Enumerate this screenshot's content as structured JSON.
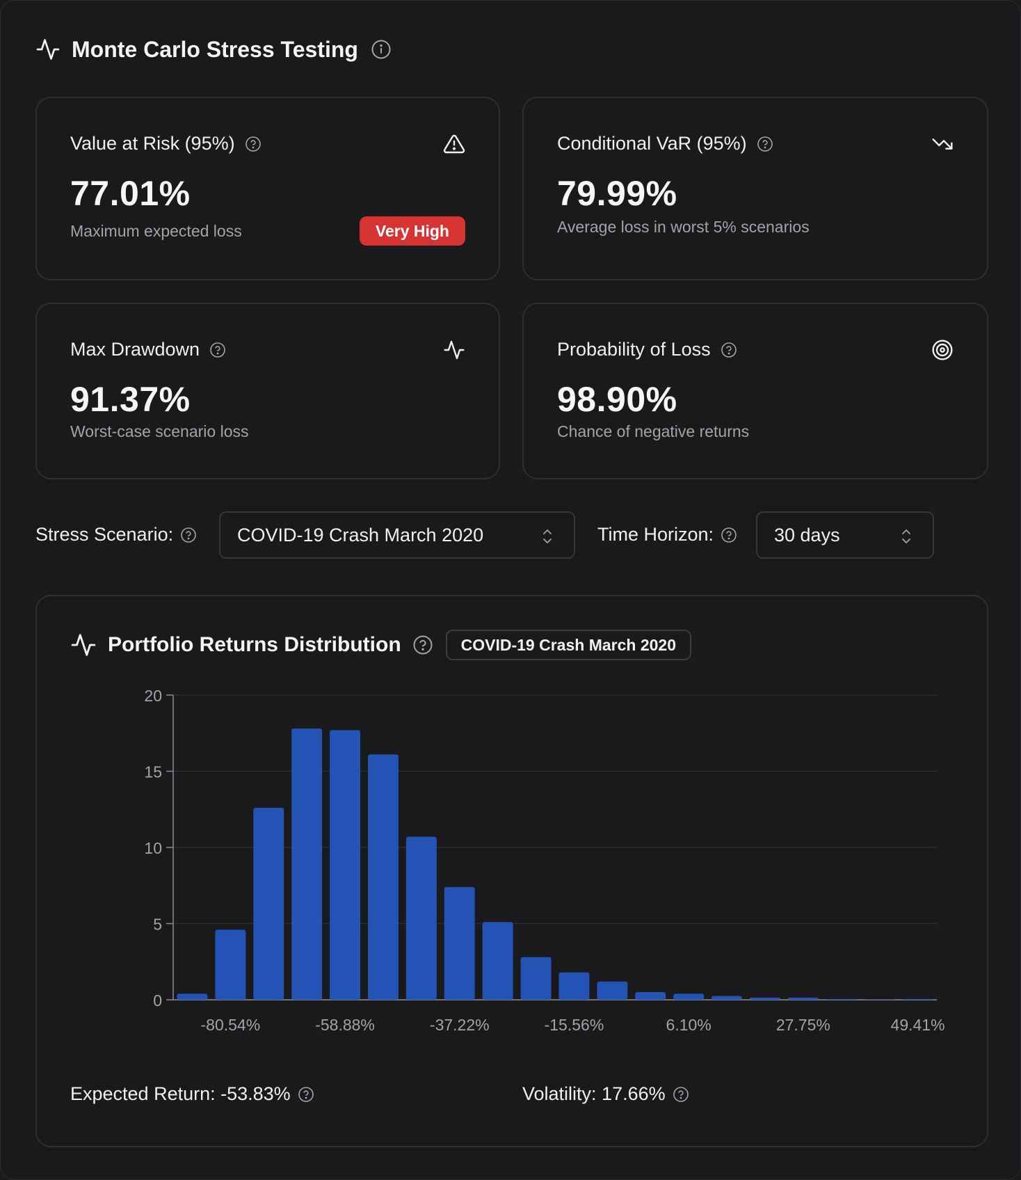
{
  "header": {
    "title": "Monte Carlo Stress Testing",
    "icon": "activity-icon"
  },
  "metrics": [
    {
      "title": "Value at Risk (95%)",
      "value": "77.01%",
      "desc": "Maximum expected loss",
      "badge": "Very High",
      "icon": "alert-triangle-icon"
    },
    {
      "title": "Conditional VaR (95%)",
      "value": "79.99%",
      "desc": "Average loss in worst 5% scenarios",
      "icon": "trending-down-icon"
    },
    {
      "title": "Max Drawdown",
      "value": "91.37%",
      "desc": "Worst-case scenario loss",
      "icon": "activity-icon"
    },
    {
      "title": "Probability of Loss",
      "value": "98.90%",
      "desc": "Chance of negative returns",
      "icon": "target-icon"
    }
  ],
  "controls": {
    "scenario_label": "Stress Scenario:",
    "scenario_value": "COVID-19 Crash March 2020",
    "horizon_label": "Time Horizon:",
    "horizon_value": "30 days"
  },
  "chart_section": {
    "title": "Portfolio Returns Distribution",
    "scenario_badge": "COVID-19 Crash March 2020",
    "expected_return": "Expected Return: -53.83%",
    "volatility": "Volatility: 17.66%"
  },
  "colors": {
    "bar": "#2353b5",
    "badge": "#d73333",
    "background": "#1a1a1d"
  },
  "chart_data": {
    "type": "bar",
    "title": "",
    "xlabel": "",
    "ylabel": "",
    "ylim": [
      0,
      20
    ],
    "yticks": [
      0,
      5,
      10,
      15,
      20
    ],
    "grid": true,
    "x_tick_labels": [
      "-80.54%",
      "-58.88%",
      "-37.22%",
      "-15.56%",
      "6.10%",
      "27.75%",
      "49.41%"
    ],
    "values": [
      0.4,
      4.6,
      12.6,
      17.8,
      17.7,
      16.1,
      10.7,
      7.4,
      5.1,
      2.8,
      1.8,
      1.2,
      0.5,
      0.4,
      0.25,
      0.15,
      0.15,
      0.05,
      0.03,
      0.05
    ]
  }
}
